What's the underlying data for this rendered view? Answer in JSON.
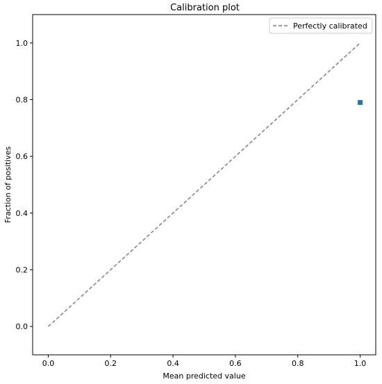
{
  "chart_data": {
    "type": "scatter",
    "title": "Calibration plot",
    "xlabel": "Mean predicted value",
    "ylabel": "Fraction of positives",
    "xlim": [
      -0.05,
      1.05
    ],
    "ylim": [
      -0.1,
      1.1
    ],
    "xticks": [
      0.0,
      0.2,
      0.4,
      0.6,
      0.8,
      1.0
    ],
    "yticks": [
      0.0,
      0.2,
      0.4,
      0.6,
      0.8,
      1.0
    ],
    "xtick_labels": [
      "0.0",
      "0.2",
      "0.4",
      "0.6",
      "0.8",
      "1.0"
    ],
    "ytick_labels": [
      "0.0",
      "0.2",
      "0.4",
      "0.6",
      "0.8",
      "1.0"
    ],
    "grid": false,
    "legend_position": "top-right",
    "series": [
      {
        "name": "Perfectly calibrated",
        "kind": "line",
        "style": "dashed",
        "color": "#808080",
        "x": [
          0.0,
          1.0
        ],
        "y": [
          0.0,
          1.0
        ]
      },
      {
        "kind": "scatter",
        "marker": "square",
        "color": "#1f77b4",
        "x": [
          1.0
        ],
        "y": [
          0.79
        ]
      }
    ]
  }
}
